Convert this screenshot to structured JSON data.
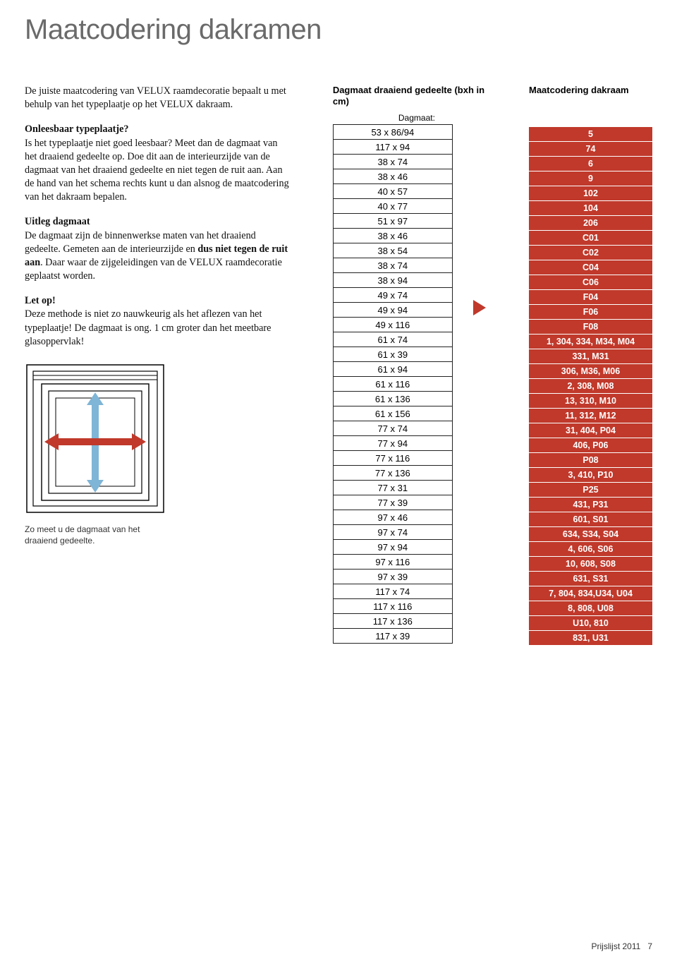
{
  "title": "Maatcodering dakramen",
  "intro": "De juiste maatcodering van VELUX raamdecoratie bepaalt u met behulp van het typeplaatje op het VELUX dakraam.",
  "section1_heading": "Onleesbaar typeplaatje?",
  "section1_body": "Is het typeplaatje niet goed leesbaar? Meet dan de dagmaat van het draaiend gedeelte op. Doe dit aan de interieurzijde van de dagmaat van het draaiend gedeelte en niet tegen de ruit aan. Aan de hand van het schema rechts kunt u dan alsnog de maatcodering van het dakraam bepalen.",
  "section2_heading": "Uitleg dagmaat",
  "section2_body_a": "De dagmaat zijn de binnenwerkse maten van het draaiend gedeelte. Gemeten aan de interieurzijde en ",
  "section2_bold": "dus niet tegen de ruit aan",
  "section2_body_b": ". Daar waar de zijgeleidingen van de VELUX raamdecoratie geplaatst worden.",
  "section3_heading": "Let op!",
  "section3_body": "Deze methode is niet zo nauwkeurig als het aflezen van het typeplaatje! De dagmaat is ong. 1 cm groter dan het meetbare glasoppervlak!",
  "diagram_caption": "Zo meet u de dagmaat van het draaiend gedeelte.",
  "header_left": "Dagmaat draaiend gedeelte (bxh in cm)",
  "header_right": "Maatcodering dakraam",
  "subhead": "Dagmaat:",
  "rows": [
    {
      "size": "53 x 86/94",
      "code": "5"
    },
    {
      "size": "117 x 94",
      "code": "74"
    },
    {
      "size": "38 x 74",
      "code": "6"
    },
    {
      "size": "38 x 46",
      "code": "9"
    },
    {
      "size": "40 x 57",
      "code": "102"
    },
    {
      "size": "40 x 77",
      "code": "104"
    },
    {
      "size": "51 x 97",
      "code": "206"
    },
    {
      "size": "38 x 46",
      "code": "C01"
    },
    {
      "size": "38 x 54",
      "code": "C02"
    },
    {
      "size": "38 x 74",
      "code": "C04"
    },
    {
      "size": "38 x 94",
      "code": "C06"
    },
    {
      "size": "49 x 74",
      "code": "F04"
    },
    {
      "size": "49 x 94",
      "code": "F06"
    },
    {
      "size": "49 x 116",
      "code": "F08"
    },
    {
      "size": "61 x 74",
      "code": "1, 304, 334, M34, M04"
    },
    {
      "size": "61 x 39",
      "code": "331, M31"
    },
    {
      "size": "61 x 94",
      "code": "306, M36, M06"
    },
    {
      "size": "61 x 116",
      "code": "2, 308, M08"
    },
    {
      "size": "61 x 136",
      "code": "13, 310, M10"
    },
    {
      "size": "61 x 156",
      "code": "11, 312, M12"
    },
    {
      "size": "77 x 74",
      "code": "31, 404, P04"
    },
    {
      "size": "77 x 94",
      "code": "406, P06"
    },
    {
      "size": "77 x 116",
      "code": "P08"
    },
    {
      "size": "77 x 136",
      "code": "3, 410, P10"
    },
    {
      "size": "77 x 31",
      "code": "P25"
    },
    {
      "size": "77 x 39",
      "code": "431, P31"
    },
    {
      "size": "97 x 46",
      "code": "601, S01"
    },
    {
      "size": "97 x 74",
      "code": "634, S34, S04"
    },
    {
      "size": "97 x 94",
      "code": "4, 606, S06"
    },
    {
      "size": "97 x 116",
      "code": "10, 608, S08"
    },
    {
      "size": "97 x 39",
      "code": "631, S31"
    },
    {
      "size": "117 x 74",
      "code": "7, 804, 834,U34, U04"
    },
    {
      "size": "117 x 116",
      "code": "8, 808, U08"
    },
    {
      "size": "117 x 136",
      "code": "U10, 810"
    },
    {
      "size": "117 x 39",
      "code": "831, U31"
    }
  ],
  "footer_text": "Prijslijst 2011",
  "footer_page": "7",
  "colors": {
    "title_gray": "#6a6a6a",
    "code_bg": "#c0392b",
    "code_text": "#ffffff",
    "arrow_blue": "#7fb5d6",
    "arrow_red": "#c0392b"
  }
}
